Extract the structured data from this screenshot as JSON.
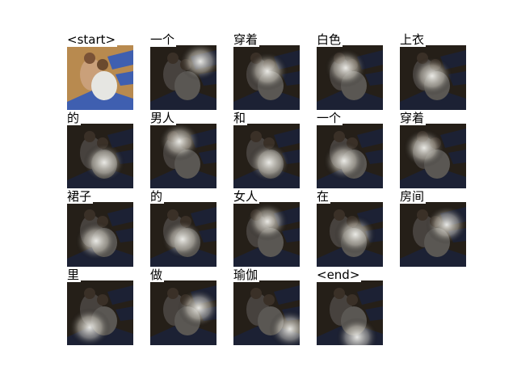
{
  "figure": {
    "tokens": [
      "<start>",
      "一个",
      "穿着",
      "白色",
      "上衣",
      "的",
      "男人",
      "和",
      "一个",
      "穿着",
      "裙子",
      "的",
      "女人",
      "在",
      "房间",
      "里",
      "做",
      "瑜伽",
      "<end>"
    ]
  },
  "colors": {
    "background": "#ffffff",
    "mat_blue": "#3f5fb0",
    "floor_wood": "#b88a4f",
    "attention_highlight": "#f2f2ee"
  }
}
